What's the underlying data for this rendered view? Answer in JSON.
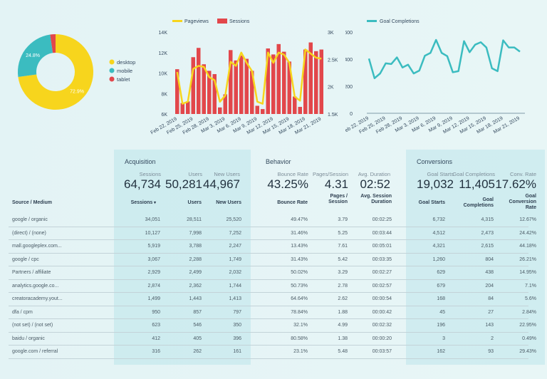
{
  "colors": {
    "desktop": "#f7d51d",
    "mobile": "#3bbcc0",
    "tablet": "#e2474b",
    "sessions": "#e2474b",
    "pageviews": "#f7d51d",
    "goal": "#3bbcc0"
  },
  "chart_data": [
    {
      "type": "pie",
      "donut": true,
      "categories": [
        "desktop",
        "mobile",
        "tablet"
      ],
      "values": [
        72.9,
        24.8,
        2.3
      ],
      "data_labels": [
        "72.9%",
        "24.8%",
        ""
      ],
      "legend": "right"
    },
    {
      "type": "bar+line",
      "x": [
        "Feb 22, 2019",
        "Feb 23, 2019",
        "Feb 24, 2019",
        "Feb 25, 2019",
        "Feb 26, 2019",
        "Feb 27, 2019",
        "Feb 28, 2019",
        "Mar 1, 2019",
        "Mar 2, 2019",
        "Mar 3, 2019",
        "Mar 4, 2019",
        "Mar 5, 2019",
        "Mar 6, 2019",
        "Mar 7, 2019",
        "Mar 8, 2019",
        "Mar 9, 2019",
        "Mar 10, 2019",
        "Mar 11, 2019",
        "Mar 12, 2019",
        "Mar 13, 2019",
        "Mar 14, 2019",
        "Mar 15, 2019",
        "Mar 16, 2019",
        "Mar 17, 2019",
        "Mar 18, 2019",
        "Mar 19, 2019",
        "Mar 20, 2019",
        "Mar 21, 2019"
      ],
      "x_tick_labels": [
        "Feb 22, 2019",
        "Feb 25, 2019",
        "Feb 28, 2019",
        "Mar 3, 2019",
        "Mar 6, 2019",
        "Mar 9, 2019",
        "Mar 12, 2019",
        "Mar 15, 2019",
        "Mar 18, 2019",
        "Mar 21, 2019"
      ],
      "series": [
        {
          "name": "Pageviews",
          "type": "line",
          "axis": "left",
          "values": [
            10100,
            7000,
            7200,
            10400,
            10700,
            10600,
            9600,
            9300,
            7200,
            7800,
            11100,
            10700,
            12000,
            11000,
            10200,
            7200,
            7000,
            12000,
            11000,
            12000,
            11800,
            11000,
            7700,
            7300,
            12300,
            11900,
            11500,
            11400
          ]
        },
        {
          "name": "Sessions",
          "type": "bar",
          "axis": "right",
          "values": [
            2320,
            1700,
            1730,
            2540,
            2710,
            2410,
            2290,
            2230,
            1620,
            1860,
            2670,
            2480,
            2570,
            2510,
            2290,
            1650,
            1590,
            2700,
            2590,
            2780,
            2640,
            2460,
            1820,
            1630,
            2680,
            2810,
            2650,
            2680
          ]
        }
      ],
      "left_axis": {
        "ylim": [
          6000,
          14000
        ],
        "ticks": [
          "6K",
          "8K",
          "10K",
          "12K",
          "14K"
        ]
      },
      "right_axis": {
        "ylim": [
          1500,
          3000
        ],
        "ticks": [
          "1.5K",
          "2K",
          "2.5K",
          "3K"
        ]
      },
      "legend": "top"
    },
    {
      "type": "line",
      "series": [
        {
          "name": "Goal Completions",
          "values": [
            404,
            259,
            294,
            369,
            364,
            413,
            338,
            359,
            294,
            315,
            425,
            446,
            542,
            446,
            422,
            303,
            311,
            533,
            451,
            507,
            525,
            486,
            332,
            311,
            539,
            486,
            486,
            455
          ]
        }
      ],
      "x_tick_labels": [
        "Feb 22, 2019",
        "Feb 25, 2019",
        "Feb 28, 2019",
        "Mar 3, 2019",
        "Mar 6, 2019",
        "Mar 9, 2019",
        "Mar 12, 2019",
        "Mar 15, 2019",
        "Mar 18, 2019",
        "Mar 21, 2019"
      ],
      "ylim": [
        0,
        600
      ],
      "y_ticks": [
        "0",
        "200",
        "400",
        "600"
      ],
      "legend": "top"
    }
  ],
  "table": {
    "groups": {
      "acquisition": "Acquisition",
      "behavior": "Behavior",
      "conversions": "Conversions"
    },
    "summary": [
      {
        "label": "Sessions",
        "value": "64,734"
      },
      {
        "label": "Users",
        "value": "50,281"
      },
      {
        "label": "New Users",
        "value": "44,967"
      },
      {
        "label": "Bounce Rate",
        "value": "43.25%"
      },
      {
        "label": "Pages/Session",
        "value": "4.31"
      },
      {
        "label": "Avg. Duration",
        "value": "02:52"
      },
      {
        "label": "Goal Starts",
        "value": "19,032"
      },
      {
        "label": "Goal Completions",
        "value": "11,405"
      },
      {
        "label": "Conv. Rate",
        "value": "17.62%"
      }
    ],
    "dimension_header": "Source / Medium",
    "sort_icon": "caret-down",
    "columns": [
      "Sessions",
      "Users",
      "New Users",
      "Bounce Rate",
      "Pages / Session",
      "Avg. Session Duration",
      "Goal Starts",
      "Goal Completions",
      "Goal Conversion Rate"
    ],
    "rows": [
      [
        "google / organic",
        "34,051",
        "28,511",
        "25,520",
        "49.47%",
        "3.79",
        "00:02:25",
        "6,732",
        "4,315",
        "12.67%"
      ],
      [
        "(direct) / (none)",
        "10,127",
        "7,998",
        "7,252",
        "31.46%",
        "5.25",
        "00:03:44",
        "4,512",
        "2,473",
        "24.42%"
      ],
      [
        "mall.googleplex.com...",
        "5,919",
        "3,788",
        "2,247",
        "13.43%",
        "7.61",
        "00:05:01",
        "4,321",
        "2,615",
        "44.18%"
      ],
      [
        "google / cpc",
        "3,067",
        "2,288",
        "1,749",
        "31.43%",
        "5.42",
        "00:03:35",
        "1,260",
        "804",
        "26.21%"
      ],
      [
        "Partners / affiliate",
        "2,929",
        "2,499",
        "2,032",
        "50.02%",
        "3.29",
        "00:02:27",
        "629",
        "438",
        "14.95%"
      ],
      [
        "analytics.google.co...",
        "2,874",
        "2,362",
        "1,744",
        "50.73%",
        "2.78",
        "00:02:57",
        "679",
        "204",
        "7.1%"
      ],
      [
        "creatoracademy.yout...",
        "1,499",
        "1,443",
        "1,413",
        "64.64%",
        "2.62",
        "00:00:54",
        "168",
        "84",
        "5.6%"
      ],
      [
        "dfa / cpm",
        "950",
        "857",
        "797",
        "78.84%",
        "1.88",
        "00:00:42",
        "45",
        "27",
        "2.84%"
      ],
      [
        "(not set) / (not set)",
        "623",
        "546",
        "350",
        "32.1%",
        "4.99",
        "00:02:32",
        "196",
        "143",
        "22.95%"
      ],
      [
        "baidu / organic",
        "412",
        "405",
        "396",
        "80.58%",
        "1.38",
        "00:00:20",
        "3",
        "2",
        "0.49%"
      ],
      [
        "google.com / referral",
        "316",
        "262",
        "161",
        "23.1%",
        "5.48",
        "00:03:57",
        "162",
        "93",
        "29.43%"
      ]
    ]
  }
}
